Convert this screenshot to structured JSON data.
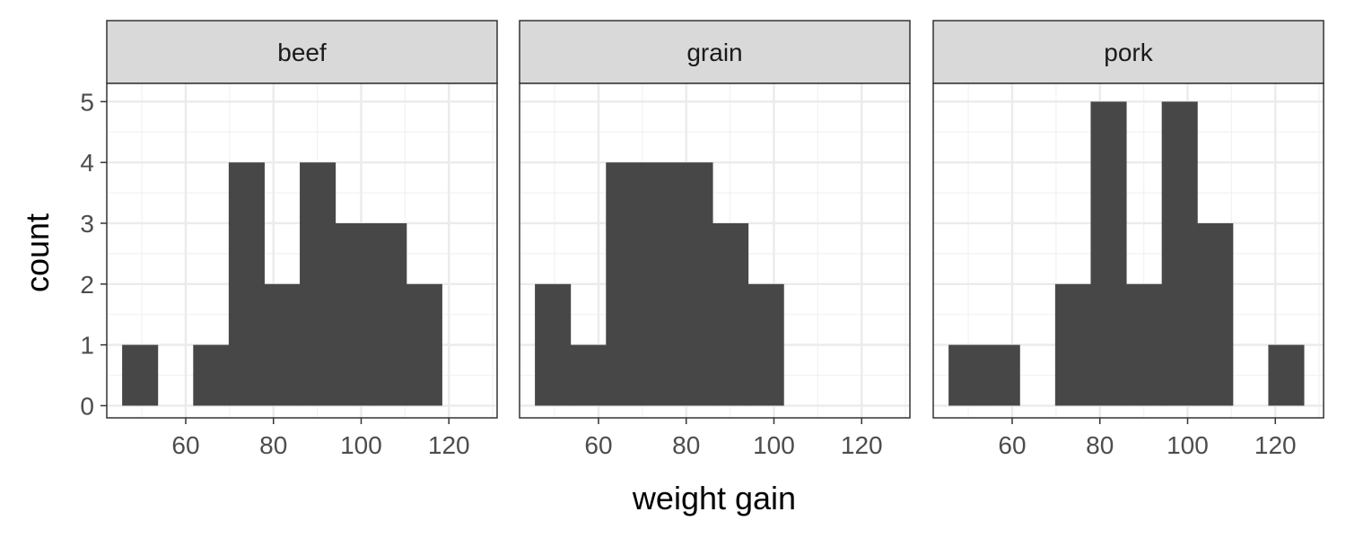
{
  "chart_data": {
    "type": "bar",
    "title": "",
    "xlabel": "weight gain",
    "ylabel": "count",
    "xlim": [
      42,
      131
    ],
    "ylim": [
      -0.2,
      5.3
    ],
    "x_ticks": [
      60,
      80,
      100,
      120
    ],
    "y_ticks": [
      0,
      1,
      2,
      3,
      4,
      5
    ],
    "bin_edges": [
      45.5,
      53.6,
      61.7,
      69.8,
      77.9,
      86.0,
      94.1,
      102.2,
      110.3,
      118.4,
      126.5
    ],
    "grid": true,
    "bar_color": "#474747",
    "facets": [
      {
        "label": "beef",
        "counts": [
          1,
          0,
          1,
          4,
          2,
          4,
          3,
          3,
          2,
          0
        ]
      },
      {
        "label": "grain",
        "counts": [
          2,
          1,
          4,
          4,
          4,
          3,
          2,
          0,
          0,
          0
        ]
      },
      {
        "label": "pork",
        "counts": [
          1,
          1,
          0,
          2,
          5,
          2,
          5,
          3,
          0,
          1
        ]
      }
    ]
  }
}
